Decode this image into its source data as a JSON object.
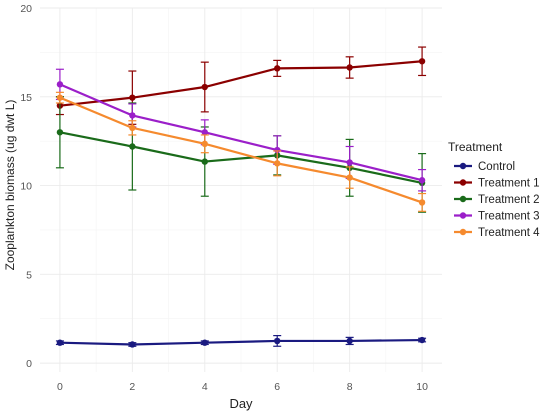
{
  "chart_data": {
    "type": "line",
    "title": "",
    "xlabel": "Day",
    "ylabel": "Zooplankton biomass (ug dwt L)",
    "x": [
      0,
      2,
      4,
      6,
      8,
      10
    ],
    "xticks": [
      "0",
      "2",
      "4",
      "6",
      "8",
      "10"
    ],
    "yticks": [
      "0",
      "5",
      "10",
      "15",
      "20"
    ],
    "xlim": [
      -0.55,
      10.55
    ],
    "ylim": [
      -0.5,
      20
    ],
    "grid": true,
    "legend": {
      "title": "Treatment",
      "position": "right"
    },
    "series": [
      {
        "name": "Control",
        "color": "#1a1a80",
        "values": [
          1.15,
          1.05,
          1.15,
          1.25,
          1.25,
          1.3
        ],
        "err": [
          0.1,
          0.1,
          0.1,
          0.3,
          0.2,
          0.1
        ]
      },
      {
        "name": "Treatment 1",
        "color": "#8b0000",
        "values": [
          14.5,
          14.95,
          15.55,
          16.6,
          16.65,
          17.0
        ],
        "err": [
          0.5,
          1.5,
          1.4,
          0.45,
          0.6,
          0.8
        ]
      },
      {
        "name": "Treatment 2",
        "color": "#1a6b1a",
        "values": [
          13.0,
          12.2,
          11.35,
          11.7,
          11.0,
          10.15
        ],
        "err": [
          2.0,
          2.45,
          1.95,
          1.1,
          1.6,
          1.65
        ]
      },
      {
        "name": "Treatment 3",
        "color": "#9b1fc9",
        "values": [
          15.7,
          13.95,
          13.0,
          12.0,
          11.3,
          10.3
        ],
        "err": [
          0.85,
          0.65,
          0.7,
          0.8,
          0.9,
          0.6
        ]
      },
      {
        "name": "Treatment 4",
        "color": "#f58a2e",
        "values": [
          14.95,
          13.25,
          12.35,
          11.25,
          10.45,
          9.05
        ],
        "err": [
          0.3,
          0.4,
          0.5,
          0.7,
          0.6,
          0.5
        ]
      }
    ]
  }
}
